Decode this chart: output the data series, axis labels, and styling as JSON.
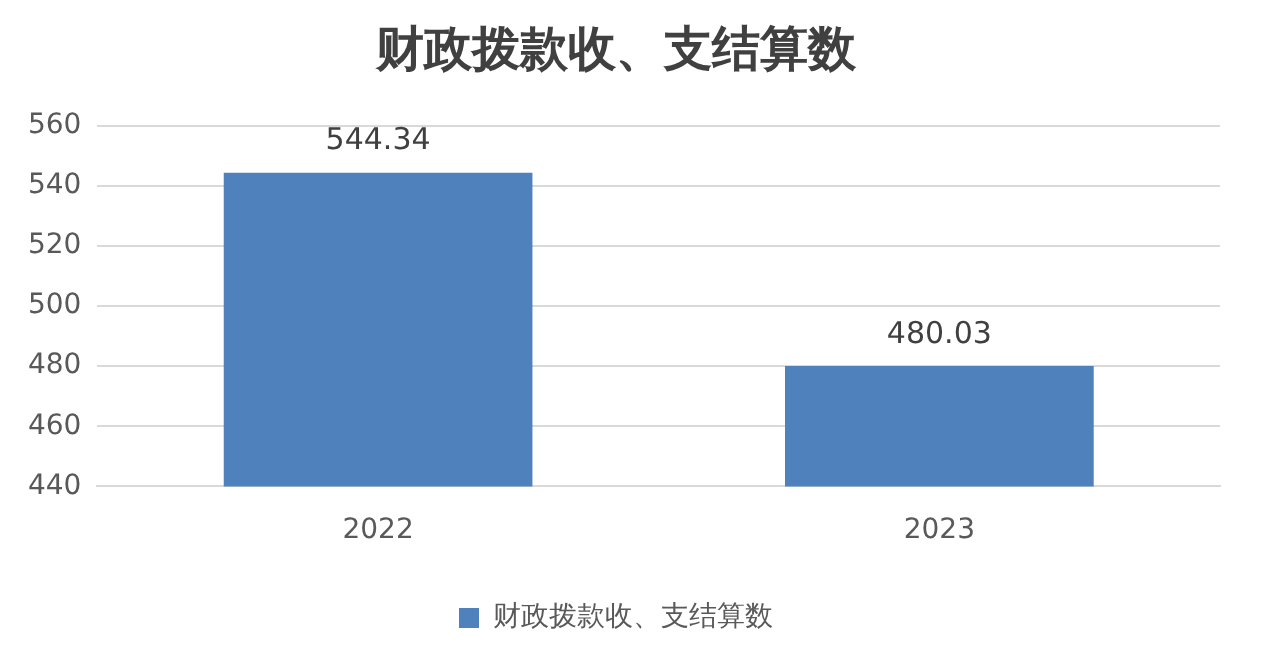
{
  "chart_data": {
    "type": "bar",
    "title": "财政拨款收、支结算数",
    "categories": [
      "2022",
      "2023"
    ],
    "series": [
      {
        "name": "财政拨款收、支结算数",
        "color": "#4f81bd",
        "values": [
          544.34,
          480.03
        ]
      }
    ],
    "ylim": [
      440,
      560
    ],
    "yticks": [
      440,
      460,
      480,
      500,
      520,
      540,
      560
    ],
    "grid": "y",
    "legend": "bottom",
    "data_labels": true
  }
}
